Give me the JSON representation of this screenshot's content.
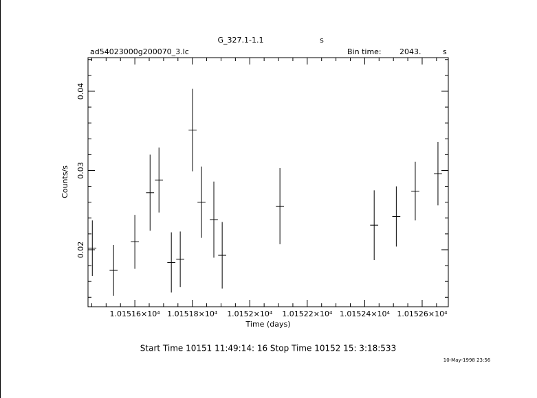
{
  "chart_data": {
    "type": "errorbar",
    "title": "G_327.1-1.1",
    "title_unit": "s",
    "subtitle": "ad54023000g200070_3.lc",
    "bin_label": "Bin time:",
    "bin_value": "2043.",
    "bin_unit": "s",
    "x_label": "Time (days)",
    "y_label": "Counts/s",
    "footer": "Start Time 10151 11:49:14: 16   Stop Time 10152 15: 3:18:533",
    "date_stamp": "10-May-1998 23:56",
    "xlim": [
      10151.437,
      10152.691
    ],
    "ylim": [
      0.01281,
      0.04424
    ],
    "xticks": [
      {
        "value": 10151.6,
        "label": "1.01516×10⁴"
      },
      {
        "value": 10151.8,
        "label": "1.01518×10⁴"
      },
      {
        "value": 10152.0,
        "label": "1.0152×10⁴"
      },
      {
        "value": 10152.2,
        "label": "1.01522×10⁴"
      },
      {
        "value": 10152.4,
        "label": "1.01524×10⁴"
      },
      {
        "value": 10152.6,
        "label": "1.01526×10⁴"
      }
    ],
    "xminor": [
      10151.45,
      10151.5,
      10151.55,
      10151.65,
      10151.7,
      10151.75,
      10151.85,
      10151.9,
      10151.95,
      10152.05,
      10152.1,
      10152.15,
      10152.25,
      10152.3,
      10152.35,
      10152.45,
      10152.5,
      10152.55,
      10152.65
    ],
    "yticks": [
      0.02,
      0.03,
      0.04
    ],
    "yminor": [
      0.014,
      0.016,
      0.018,
      0.022,
      0.024,
      0.026,
      0.028,
      0.032,
      0.034,
      0.036,
      0.038,
      0.042,
      0.044
    ],
    "color": "#000000",
    "xerr": 0.014,
    "x": [
      10151.452,
      10151.526,
      10151.6,
      10151.653,
      10151.684,
      10151.727,
      10151.758,
      10151.801,
      10151.832,
      10151.875,
      10151.904,
      10152.105,
      10152.433,
      10152.51,
      10152.576,
      10152.655
    ],
    "values": [
      0.0202,
      0.0174,
      0.021,
      0.0272,
      0.0288,
      0.0184,
      0.0188,
      0.0351,
      0.026,
      0.0238,
      0.0193,
      0.0255,
      0.0231,
      0.0242,
      0.0274,
      0.0296
    ],
    "errors": [
      0.0035,
      0.0032,
      0.0034,
      0.0048,
      0.0041,
      0.0038,
      0.0035,
      0.0052,
      0.0045,
      0.0048,
      0.0042,
      0.0048,
      0.0044,
      0.0038,
      0.0037,
      0.004
    ]
  }
}
